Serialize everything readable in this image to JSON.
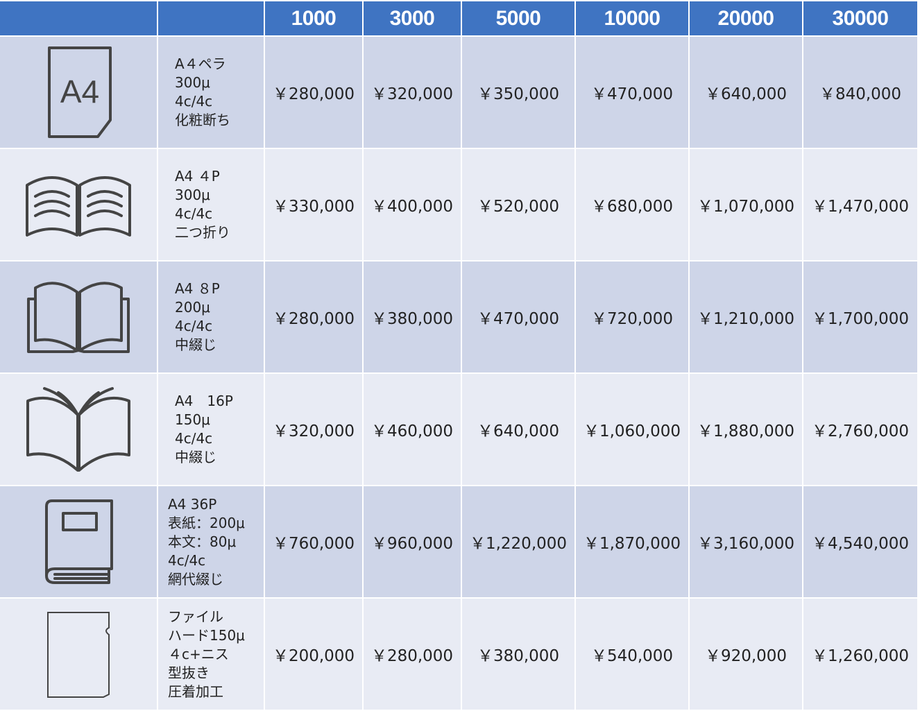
{
  "header": {
    "quantities": [
      "1000",
      "3000",
      "5000",
      "10000",
      "20000",
      "30000"
    ]
  },
  "rows": [
    {
      "icon": "a4-sheet-icon",
      "icon_text": "A4",
      "desc": [
        "A４ペラ",
        "300μ",
        "4c/4c",
        "化粧断ち"
      ],
      "prices": [
        "￥280,000",
        "￥320,000",
        "￥350,000",
        "￥470,000",
        "￥640,000",
        "￥840,000"
      ]
    },
    {
      "icon": "folded-leaflet-icon",
      "desc": [
        "A4 ４P",
        "300μ",
        "4c/4c",
        "二つ折り"
      ],
      "prices": [
        "￥330,000",
        "￥400,000",
        "￥520,000",
        "￥680,000",
        "￥1,070,000",
        "￥1,470,000"
      ]
    },
    {
      "icon": "open-booklet-icon",
      "desc": [
        "A4 ８P",
        "200μ",
        "4c/4c",
        "中綴じ"
      ],
      "prices": [
        "￥280,000",
        "￥380,000",
        "￥470,000",
        "￥720,000",
        "￥1,210,000",
        "￥1,700,000"
      ]
    },
    {
      "icon": "open-book-pages-icon",
      "desc": [
        "A4　16P",
        "150μ",
        "4c/4c",
        "中綴じ"
      ],
      "prices": [
        "￥320,000",
        "￥460,000",
        "￥640,000",
        "￥1,060,000",
        "￥1,880,000",
        "￥2,760,000"
      ]
    },
    {
      "icon": "bound-book-icon",
      "desc": [
        "A4 36P",
        "表紙：200μ",
        "本文：80μ",
        "4c/4c",
        "網代綴じ"
      ],
      "prices": [
        "￥760,000",
        "￥960,000",
        "￥1,220,000",
        "￥1,870,000",
        "￥3,160,000",
        "￥4,540,000"
      ]
    },
    {
      "icon": "clear-file-icon",
      "desc": [
        "ファイル",
        "ハード150μ",
        "４c+ニス",
        "型抜き",
        "圧着加工"
      ],
      "prices": [
        "￥200,000",
        "￥280,000",
        "￥380,000",
        "￥540,000",
        "￥920,000",
        "￥1,260,000"
      ]
    }
  ]
}
